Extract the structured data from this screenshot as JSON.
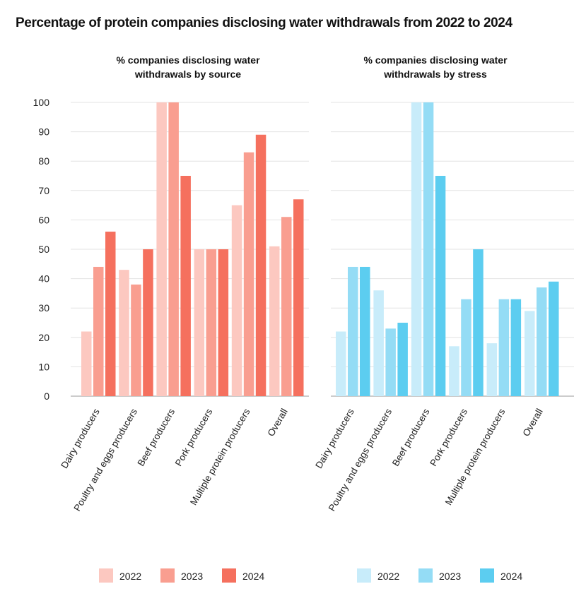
{
  "title": "Percentage of protein companies disclosing water withdrawals from 2022 to 2024",
  "chart_data": [
    {
      "type": "bar",
      "title": "% companies disclosing water withdrawals by source",
      "categories": [
        "Dairy producers",
        "Poultry and eggs producers",
        "Beef producers",
        "Pork producers",
        "Multiple protein producers",
        "Overall"
      ],
      "series": [
        {
          "name": "2022",
          "color": "#fcc8c0",
          "values": [
            22,
            43,
            100,
            50,
            65,
            51
          ]
        },
        {
          "name": "2023",
          "color": "#f99e90",
          "values": [
            44,
            38,
            100,
            50,
            83,
            61
          ]
        },
        {
          "name": "2024",
          "color": "#f5705e",
          "values": [
            56,
            50,
            75,
            50,
            89,
            67
          ]
        }
      ],
      "yticks": [
        0,
        10,
        20,
        30,
        40,
        50,
        60,
        70,
        80,
        90,
        100
      ],
      "ylim": [
        0,
        100
      ],
      "grid": true,
      "legend": "bottom"
    },
    {
      "type": "bar",
      "title": "% companies disclosing water withdrawals by stress",
      "categories": [
        "Dairy producers",
        "Poultry and eggs producers",
        "Beef producers",
        "Pork producers",
        "Multiple protein producers",
        "Overall"
      ],
      "series": [
        {
          "name": "2022",
          "color": "#c8ecfa",
          "values": [
            22,
            36,
            100,
            17,
            18,
            29
          ]
        },
        {
          "name": "2023",
          "color": "#94dcf5",
          "values": [
            44,
            23,
            100,
            33,
            33,
            37
          ]
        },
        {
          "name": "2024",
          "color": "#5ccdf0",
          "values": [
            44,
            25,
            75,
            50,
            33,
            39
          ]
        }
      ],
      "ylim": [
        0,
        100
      ],
      "grid": true,
      "legend": "bottom"
    }
  ]
}
